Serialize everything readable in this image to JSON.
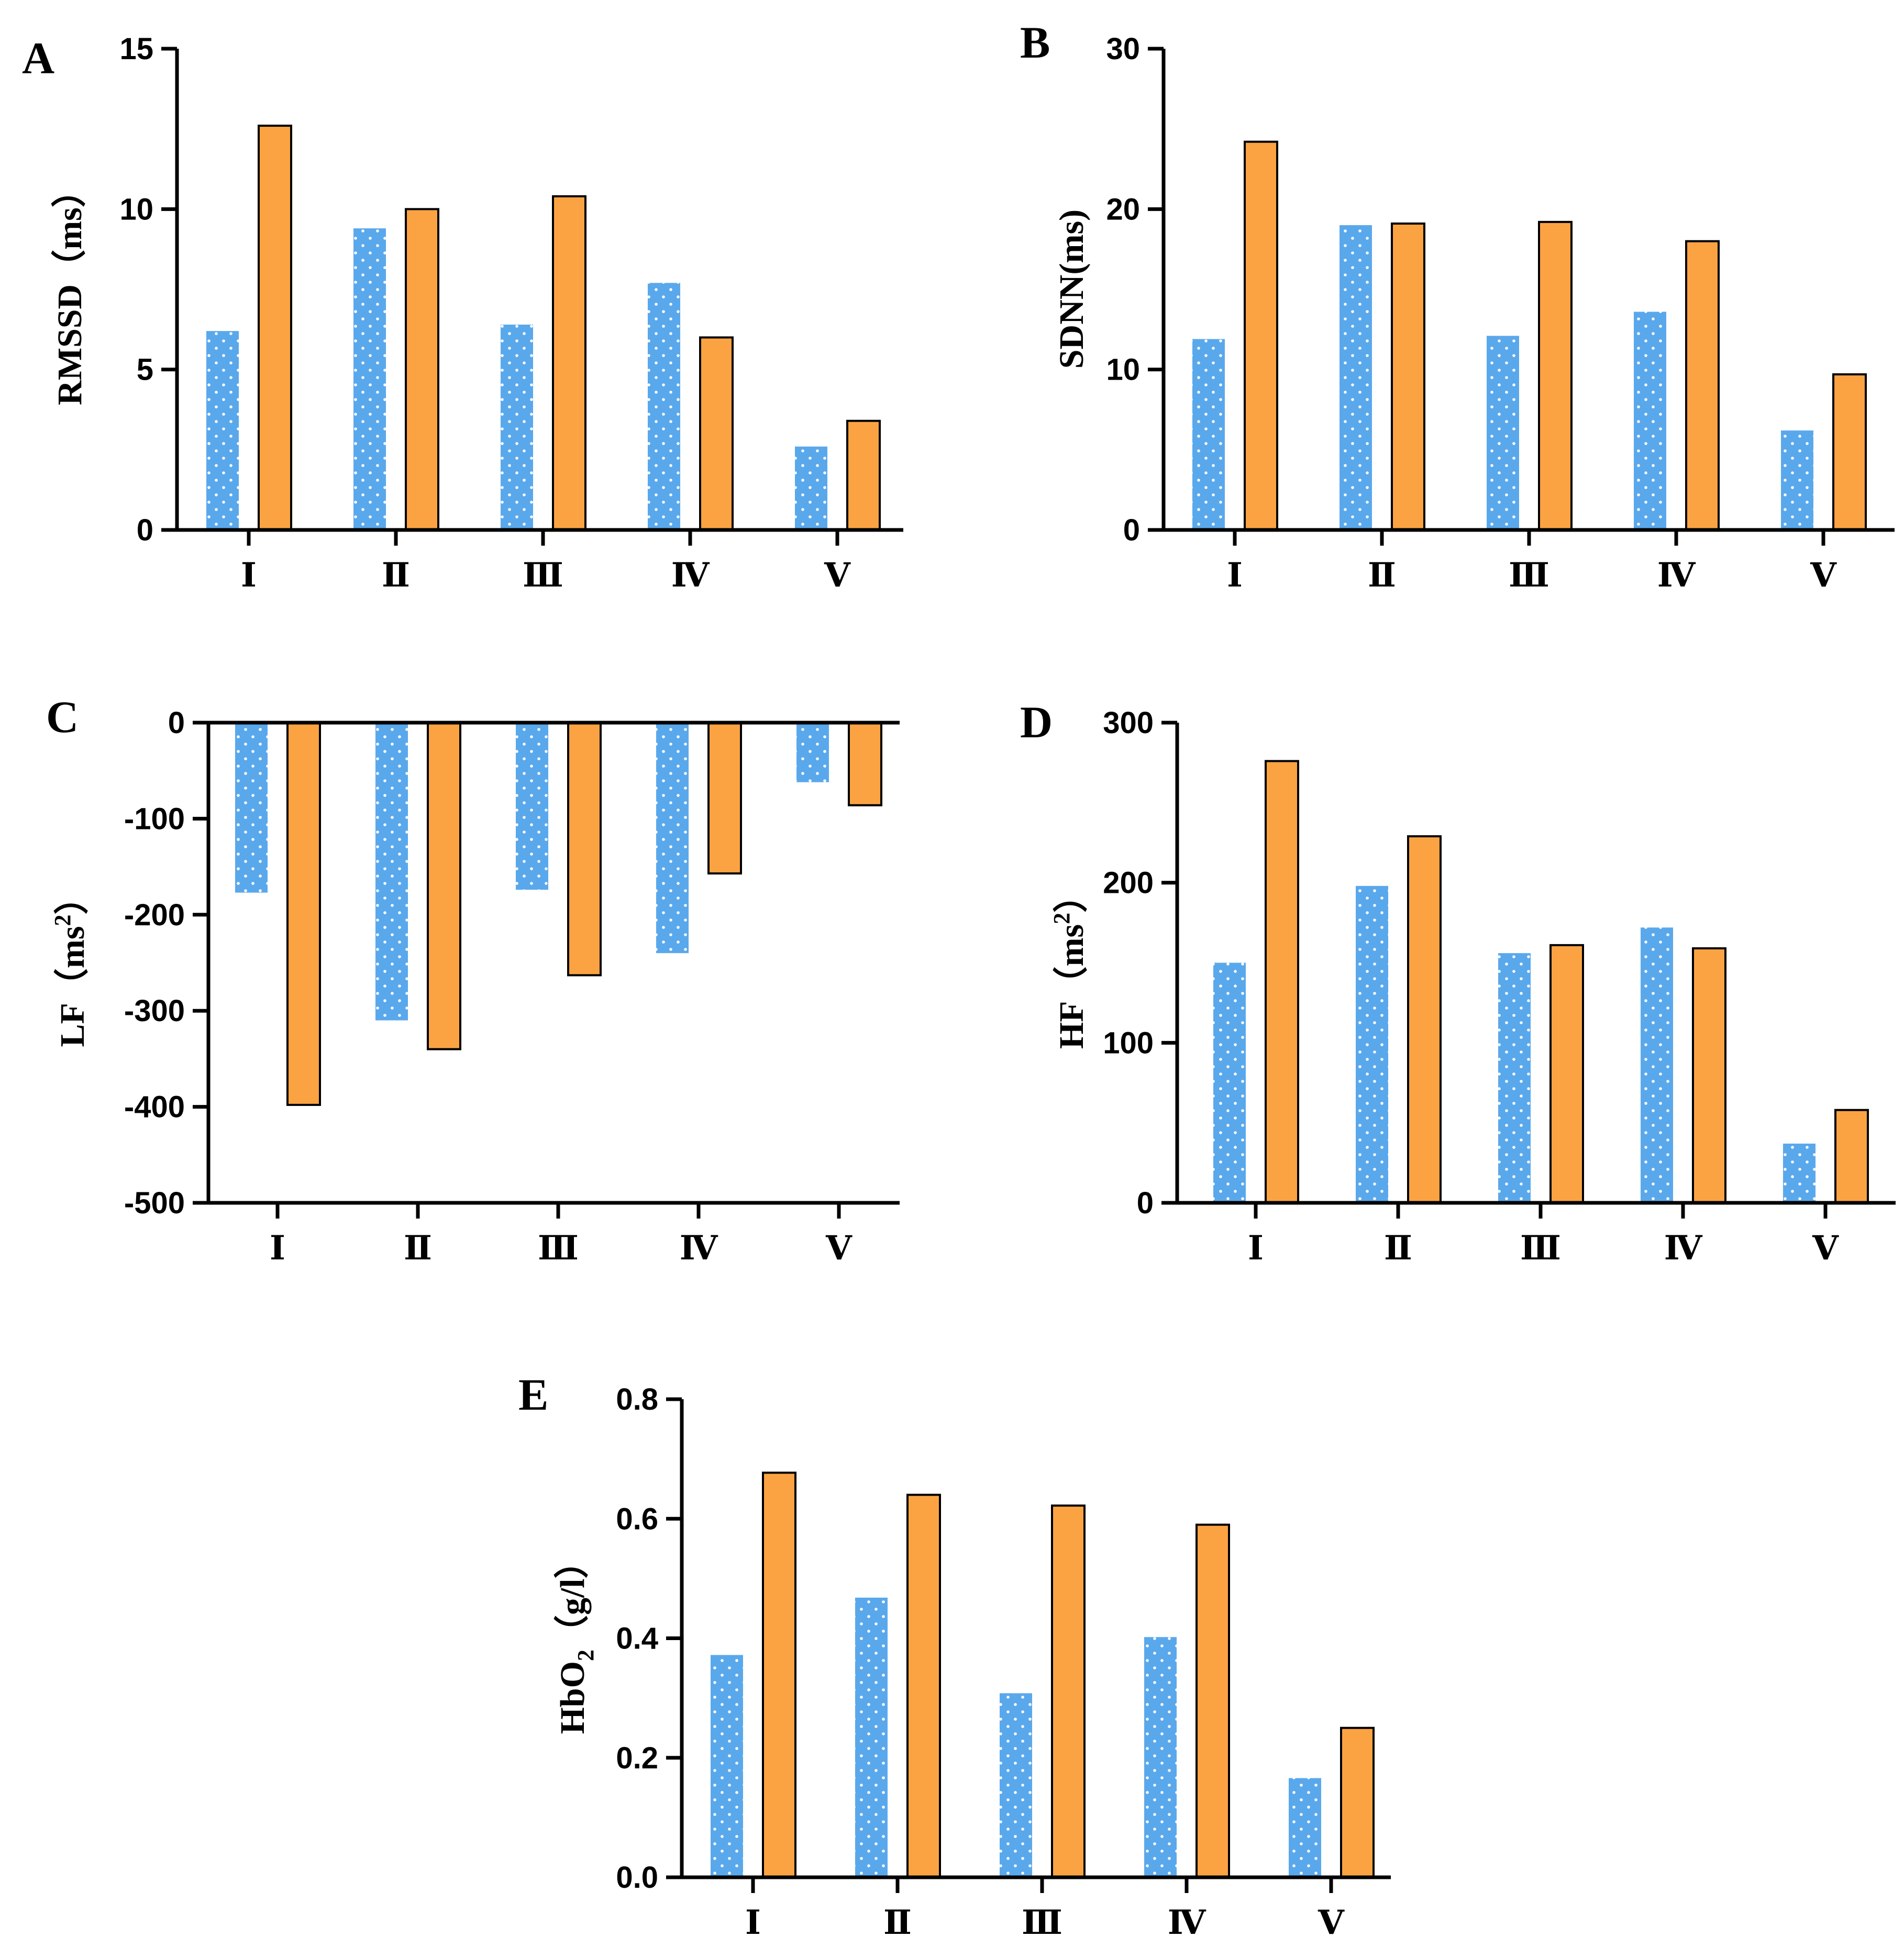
{
  "colors": {
    "series_a": "#5aa8ec",
    "series_b": "#fba343",
    "series_b_stroke": "#000000",
    "dots": "#ffffff"
  },
  "chart_data": [
    {
      "type": "bar",
      "panel": "A",
      "ylabel": "RMSSD（ms）",
      "ylabel_parts": [
        "RMSSD（ms）"
      ],
      "categories": [
        "Ⅰ",
        "Ⅱ",
        "Ⅲ",
        "Ⅳ",
        "Ⅴ"
      ],
      "ylim": [
        0,
        15
      ],
      "yticks": [
        0,
        5,
        10,
        15
      ],
      "ytick_labels": [
        "0",
        "5",
        "10",
        "15"
      ],
      "series": [
        {
          "name": "dotted-blue",
          "values": [
            6.2,
            9.4,
            6.4,
            7.7,
            2.6
          ]
        },
        {
          "name": "orange",
          "values": [
            12.6,
            10.0,
            10.4,
            6.0,
            3.4
          ]
        }
      ]
    },
    {
      "type": "bar",
      "panel": "B",
      "ylabel": "SDNN(ms)",
      "categories": [
        "Ⅰ",
        "Ⅱ",
        "Ⅲ",
        "Ⅳ",
        "Ⅴ"
      ],
      "ylim": [
        0,
        30
      ],
      "yticks": [
        0,
        10,
        20,
        30
      ],
      "ytick_labels": [
        "0",
        "10",
        "20",
        "30"
      ],
      "series": [
        {
          "name": "dotted-blue",
          "values": [
            11.9,
            19.0,
            12.1,
            13.6,
            6.2
          ]
        },
        {
          "name": "orange",
          "values": [
            24.2,
            19.1,
            19.2,
            18.0,
            9.7
          ]
        }
      ]
    },
    {
      "type": "bar",
      "panel": "C",
      "ylabel": "LF（ms2）",
      "ylabel_base": "LF（ms",
      "ylabel_sup": "2",
      "ylabel_tail": "）",
      "categories": [
        "Ⅰ",
        "Ⅱ",
        "Ⅲ",
        "Ⅳ",
        "Ⅴ"
      ],
      "ylim": [
        -500,
        0
      ],
      "yticks": [
        0,
        -100,
        -200,
        -300,
        -400,
        -500
      ],
      "ytick_labels": [
        "0",
        "-100",
        "-200",
        "-300",
        "-400",
        "-500"
      ],
      "series": [
        {
          "name": "dotted-blue",
          "values": [
            -177,
            -310,
            -174,
            -240,
            -62
          ]
        },
        {
          "name": "orange",
          "values": [
            -398,
            -340,
            -263,
            -157,
            -86
          ]
        }
      ]
    },
    {
      "type": "bar",
      "panel": "D",
      "ylabel": "HF（ms2）",
      "ylabel_base": "HF（ms",
      "ylabel_sup": "2",
      "ylabel_tail": "）",
      "categories": [
        "Ⅰ",
        "Ⅱ",
        "Ⅲ",
        "Ⅳ",
        "Ⅴ"
      ],
      "ylim": [
        0,
        300
      ],
      "yticks": [
        0,
        100,
        200,
        300
      ],
      "ytick_labels": [
        "0",
        "100",
        "200",
        "300"
      ],
      "series": [
        {
          "name": "dotted-blue",
          "values": [
            150,
            198,
            156,
            172,
            37
          ]
        },
        {
          "name": "orange",
          "values": [
            276,
            229,
            161,
            159,
            58
          ]
        }
      ]
    },
    {
      "type": "bar",
      "panel": "E",
      "ylabel": "HbO2（g/l）",
      "ylabel_base": "HbO",
      "ylabel_sub": "2",
      "ylabel_tail": "（g/l）",
      "categories": [
        "Ⅰ",
        "Ⅱ",
        "Ⅲ",
        "Ⅳ",
        "Ⅴ"
      ],
      "ylim": [
        0,
        0.8
      ],
      "yticks": [
        0,
        0.2,
        0.4,
        0.6,
        0.8
      ],
      "ytick_labels": [
        "0.0",
        "0.2",
        "0.4",
        "0.6",
        "0.8"
      ],
      "series": [
        {
          "name": "dotted-blue",
          "values": [
            0.372,
            0.468,
            0.308,
            0.402,
            0.166
          ]
        },
        {
          "name": "orange",
          "values": [
            0.677,
            0.64,
            0.622,
            0.59,
            0.25
          ]
        }
      ]
    }
  ]
}
